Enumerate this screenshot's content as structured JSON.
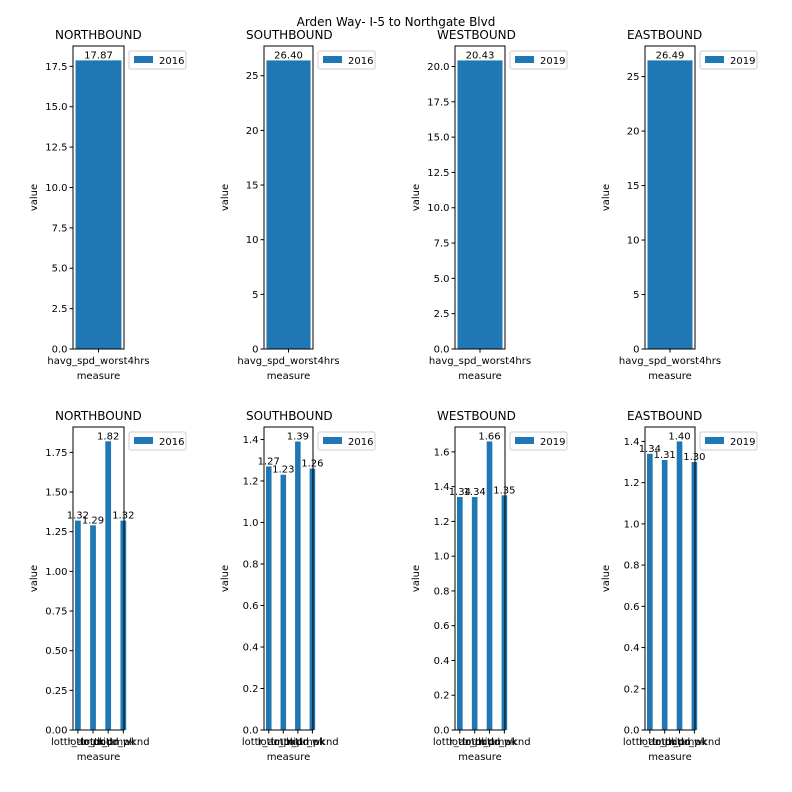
{
  "chart_data": {
    "title": "Arden Way- I-5 to Northgate Blvd",
    "bar_color": "#1f77b4",
    "panels": [
      {
        "type": "bar",
        "title": "NORTHBOUND",
        "legend": "2016",
        "legend_placement": "upper-right-outside",
        "categories": [
          "havg_spd_worst4hrs"
        ],
        "values": [
          17.87
        ],
        "value_labels": [
          "17.87"
        ],
        "xlabel": "measure",
        "ylabel": "value",
        "ylim": [
          0,
          18.76
        ],
        "yticks": [
          0,
          2.5,
          5,
          7.5,
          10,
          12.5,
          15,
          17.5
        ],
        "ytick_labels": [
          "0.0",
          "2.5",
          "5.0",
          "7.5",
          "10.0",
          "12.5",
          "15.0",
          "17.5"
        ]
      },
      {
        "type": "bar",
        "title": "SOUTHBOUND",
        "legend": "2016",
        "legend_placement": "upper-right-outside",
        "categories": [
          "havg_spd_worst4hrs"
        ],
        "values": [
          26.4
        ],
        "value_labels": [
          "26.40"
        ],
        "xlabel": "measure",
        "ylabel": "value",
        "ylim": [
          0,
          27.72
        ],
        "yticks": [
          0,
          5,
          10,
          15,
          20,
          25
        ],
        "ytick_labels": [
          "0",
          "5",
          "10",
          "15",
          "20",
          "25"
        ]
      },
      {
        "type": "bar",
        "title": "WESTBOUND",
        "legend": "2019",
        "legend_placement": "upper-right-outside",
        "categories": [
          "havg_spd_worst4hrs"
        ],
        "values": [
          20.43
        ],
        "value_labels": [
          "20.43"
        ],
        "xlabel": "measure",
        "ylabel": "value",
        "ylim": [
          0,
          21.45
        ],
        "yticks": [
          0,
          2.5,
          5,
          7.5,
          10,
          12.5,
          15,
          17.5,
          20
        ],
        "ytick_labels": [
          "0.0",
          "2.5",
          "5.0",
          "7.5",
          "10.0",
          "12.5",
          "15.0",
          "17.5",
          "20.0"
        ]
      },
      {
        "type": "bar",
        "title": "EASTBOUND",
        "legend": "2019",
        "legend_placement": "upper-right-outside",
        "categories": [
          "havg_spd_worst4hrs"
        ],
        "values": [
          26.49
        ],
        "value_labels": [
          "26.49"
        ],
        "xlabel": "measure",
        "ylabel": "value",
        "ylim": [
          0,
          27.81
        ],
        "yticks": [
          0,
          5,
          10,
          15,
          20,
          25
        ],
        "ytick_labels": [
          "0",
          "5",
          "10",
          "15",
          "20",
          "25"
        ]
      },
      {
        "type": "bar",
        "title": "NORTHBOUND",
        "legend": "2016",
        "legend_placement": "upper-right-outside",
        "categories": [
          "lottr_ampk",
          "lottr_midd",
          "lottr_pmpk",
          "lottr_wknd"
        ],
        "values": [
          1.32,
          1.29,
          1.82,
          1.32
        ],
        "value_labels": [
          "1.32",
          "1.29",
          "1.82",
          "1.32"
        ],
        "xlabel": "measure",
        "ylabel": "value",
        "ylim": [
          0,
          1.91
        ],
        "yticks": [
          0,
          0.25,
          0.5,
          0.75,
          1.0,
          1.25,
          1.5,
          1.75
        ],
        "ytick_labels": [
          "0.00",
          "0.25",
          "0.50",
          "0.75",
          "1.00",
          "1.25",
          "1.50",
          "1.75"
        ]
      },
      {
        "type": "bar",
        "title": "SOUTHBOUND",
        "legend": "2016",
        "legend_placement": "upper-right-outside",
        "categories": [
          "lottr_ampk",
          "lottr_midd",
          "lottr_pmpk",
          "lottr_wknd"
        ],
        "values": [
          1.27,
          1.23,
          1.39,
          1.26
        ],
        "value_labels": [
          "1.27",
          "1.23",
          "1.39",
          "1.26"
        ],
        "xlabel": "measure",
        "ylabel": "value",
        "ylim": [
          0,
          1.46
        ],
        "yticks": [
          0,
          0.2,
          0.4,
          0.6,
          0.8,
          1.0,
          1.2,
          1.4
        ],
        "ytick_labels": [
          "0.0",
          "0.2",
          "0.4",
          "0.6",
          "0.8",
          "1.0",
          "1.2",
          "1.4"
        ]
      },
      {
        "type": "bar",
        "title": "WESTBOUND",
        "legend": "2019",
        "legend_placement": "upper-right-outside",
        "categories": [
          "lottr_ampk",
          "lottr_midd",
          "lottr_pmpk",
          "lottr_wknd"
        ],
        "values": [
          1.34,
          1.34,
          1.66,
          1.35
        ],
        "value_labels": [
          "1.34",
          "1.34",
          "1.66",
          "1.35"
        ],
        "xlabel": "measure",
        "ylabel": "value",
        "ylim": [
          0,
          1.743
        ],
        "yticks": [
          0,
          0.2,
          0.4,
          0.6,
          0.8,
          1.0,
          1.2,
          1.4,
          1.6
        ],
        "ytick_labels": [
          "0.0",
          "0.2",
          "0.4",
          "0.6",
          "0.8",
          "1.0",
          "1.2",
          "1.4",
          "1.6"
        ]
      },
      {
        "type": "bar",
        "title": "EASTBOUND",
        "legend": "2019",
        "legend_placement": "upper-right-outside",
        "categories": [
          "lottr_ampk",
          "lottr_midd",
          "lottr_pmpk",
          "lottr_wknd"
        ],
        "values": [
          1.34,
          1.31,
          1.4,
          1.3
        ],
        "value_labels": [
          "1.34",
          "1.31",
          "1.40",
          "1.30"
        ],
        "xlabel": "measure",
        "ylabel": "value",
        "ylim": [
          0,
          1.47
        ],
        "yticks": [
          0,
          0.2,
          0.4,
          0.6,
          0.8,
          1.0,
          1.2,
          1.4
        ],
        "ytick_labels": [
          "0.0",
          "0.2",
          "0.4",
          "0.6",
          "0.8",
          "1.0",
          "1.2",
          "1.4"
        ]
      }
    ]
  }
}
